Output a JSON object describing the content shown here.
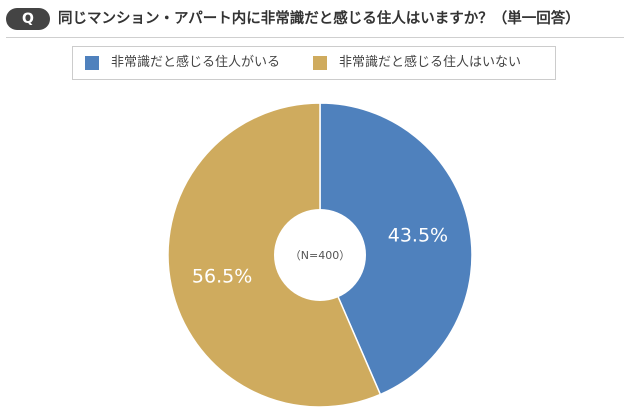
{
  "header": {
    "badge": "Q",
    "question": "同じマンション・アパート内に非常識だと感じる住人はいますか？（単一回答）"
  },
  "legend": {
    "items": [
      {
        "label": "非常識だと感じる住人がいる",
        "color": "#4f81bd"
      },
      {
        "label": "非常識だと感じる住人はいない",
        "color": "#cfab5e"
      }
    ]
  },
  "chart_data": {
    "type": "pie",
    "title": "同じマンション・アパート内に非常識だと感じる住人はいますか？（単一回答）",
    "center_label": "（N=400）",
    "categories": [
      "非常識だと感じる住人がいる",
      "非常識だと感じる住人はいない"
    ],
    "values": [
      43.5,
      56.5
    ],
    "value_labels": [
      "43.5%",
      "56.5%"
    ],
    "colors": [
      "#4f81bd",
      "#cfab5e"
    ],
    "legend": "top"
  }
}
